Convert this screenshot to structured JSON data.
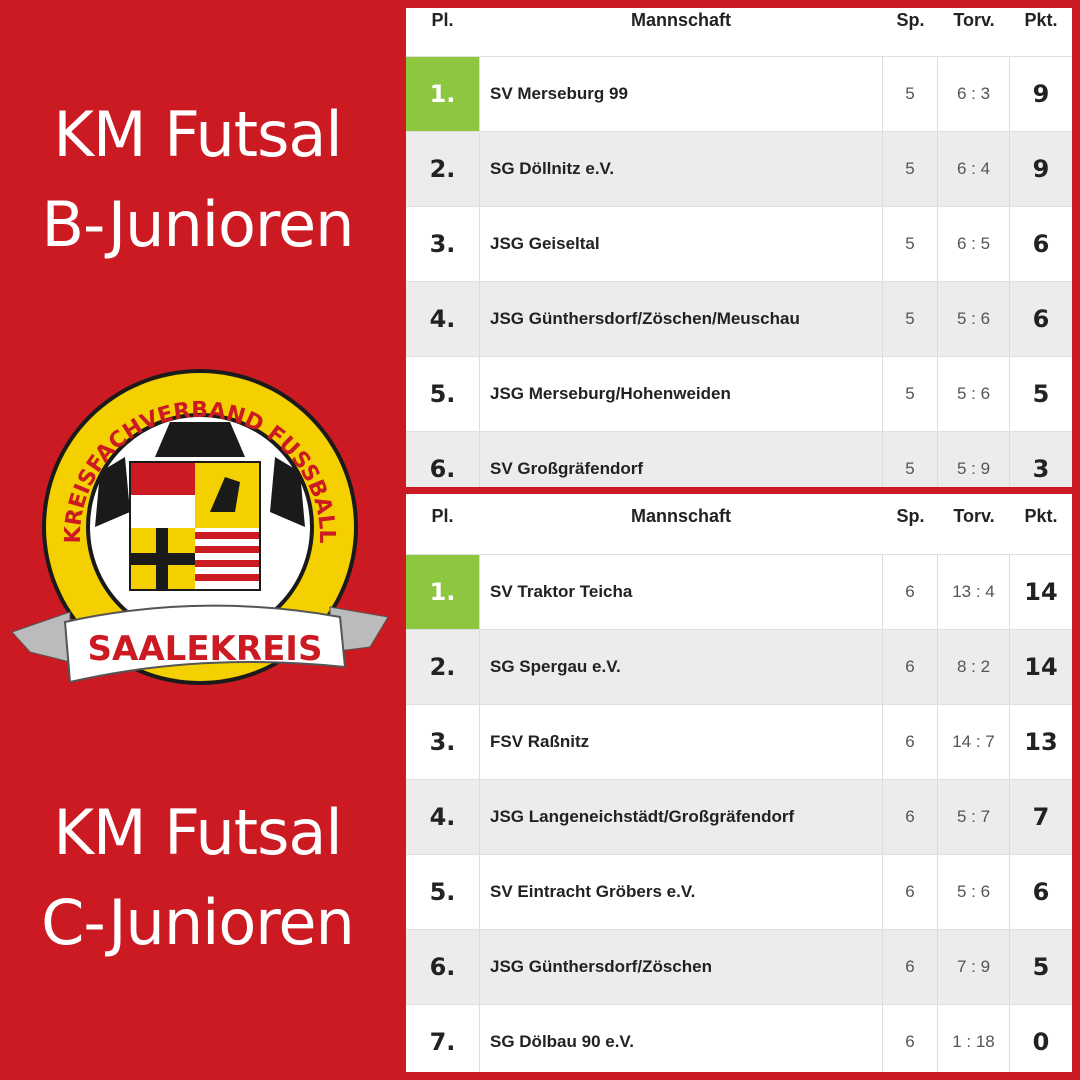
{
  "left": {
    "title_b": [
      "KM Futsal",
      "B-Junioren"
    ],
    "title_c": [
      "KM Futsal",
      "C-Junioren"
    ],
    "logo": {
      "ring_text": "KREISFACHVERBAND FUSSBALL",
      "banner_text": "SAALEKREIS"
    }
  },
  "colors": {
    "background": "#cc1a22",
    "first_place": "#8dc63f"
  },
  "headers": {
    "pl": "Pl.",
    "team": "Mannschaft",
    "sp": "Sp.",
    "torv": "Torv.",
    "pkt": "Pkt."
  },
  "table_b": [
    {
      "pl": "1.",
      "team": "SV Merseburg 99",
      "sp": "5",
      "torv": "6 : 3",
      "pkt": "9"
    },
    {
      "pl": "2.",
      "team": "SG Döllnitz e.V.",
      "sp": "5",
      "torv": "6 : 4",
      "pkt": "9"
    },
    {
      "pl": "3.",
      "team": "JSG Geiseltal",
      "sp": "5",
      "torv": "6 : 5",
      "pkt": "6"
    },
    {
      "pl": "4.",
      "team": "JSG Günthersdorf/Zöschen/Meuschau",
      "sp": "5",
      "torv": "5 : 6",
      "pkt": "6"
    },
    {
      "pl": "5.",
      "team": "JSG Merseburg/Hohenweiden",
      "sp": "5",
      "torv": "5 : 6",
      "pkt": "5"
    },
    {
      "pl": "6.",
      "team": "SV Großgräfendorf",
      "sp": "5",
      "torv": "5 : 9",
      "pkt": "3"
    }
  ],
  "table_c": [
    {
      "pl": "1.",
      "team": "SV Traktor Teicha",
      "sp": "6",
      "torv": "13 : 4",
      "pkt": "14"
    },
    {
      "pl": "2.",
      "team": "SG Spergau e.V.",
      "sp": "6",
      "torv": "8 : 2",
      "pkt": "14"
    },
    {
      "pl": "3.",
      "team": "FSV Raßnitz",
      "sp": "6",
      "torv": "14 : 7",
      "pkt": "13"
    },
    {
      "pl": "4.",
      "team": "JSG Langeneichstädt/Großgräfendorf",
      "sp": "6",
      "torv": "5 : 7",
      "pkt": "7"
    },
    {
      "pl": "5.",
      "team": "SV Eintracht Gröbers e.V.",
      "sp": "6",
      "torv": "5 : 6",
      "pkt": "6"
    },
    {
      "pl": "6.",
      "team": "JSG Günthersdorf/Zöschen",
      "sp": "6",
      "torv": "7 : 9",
      "pkt": "5"
    },
    {
      "pl": "7.",
      "team": "SG Dölbau 90 e.V.",
      "sp": "6",
      "torv": "1 : 18",
      "pkt": "0"
    }
  ]
}
